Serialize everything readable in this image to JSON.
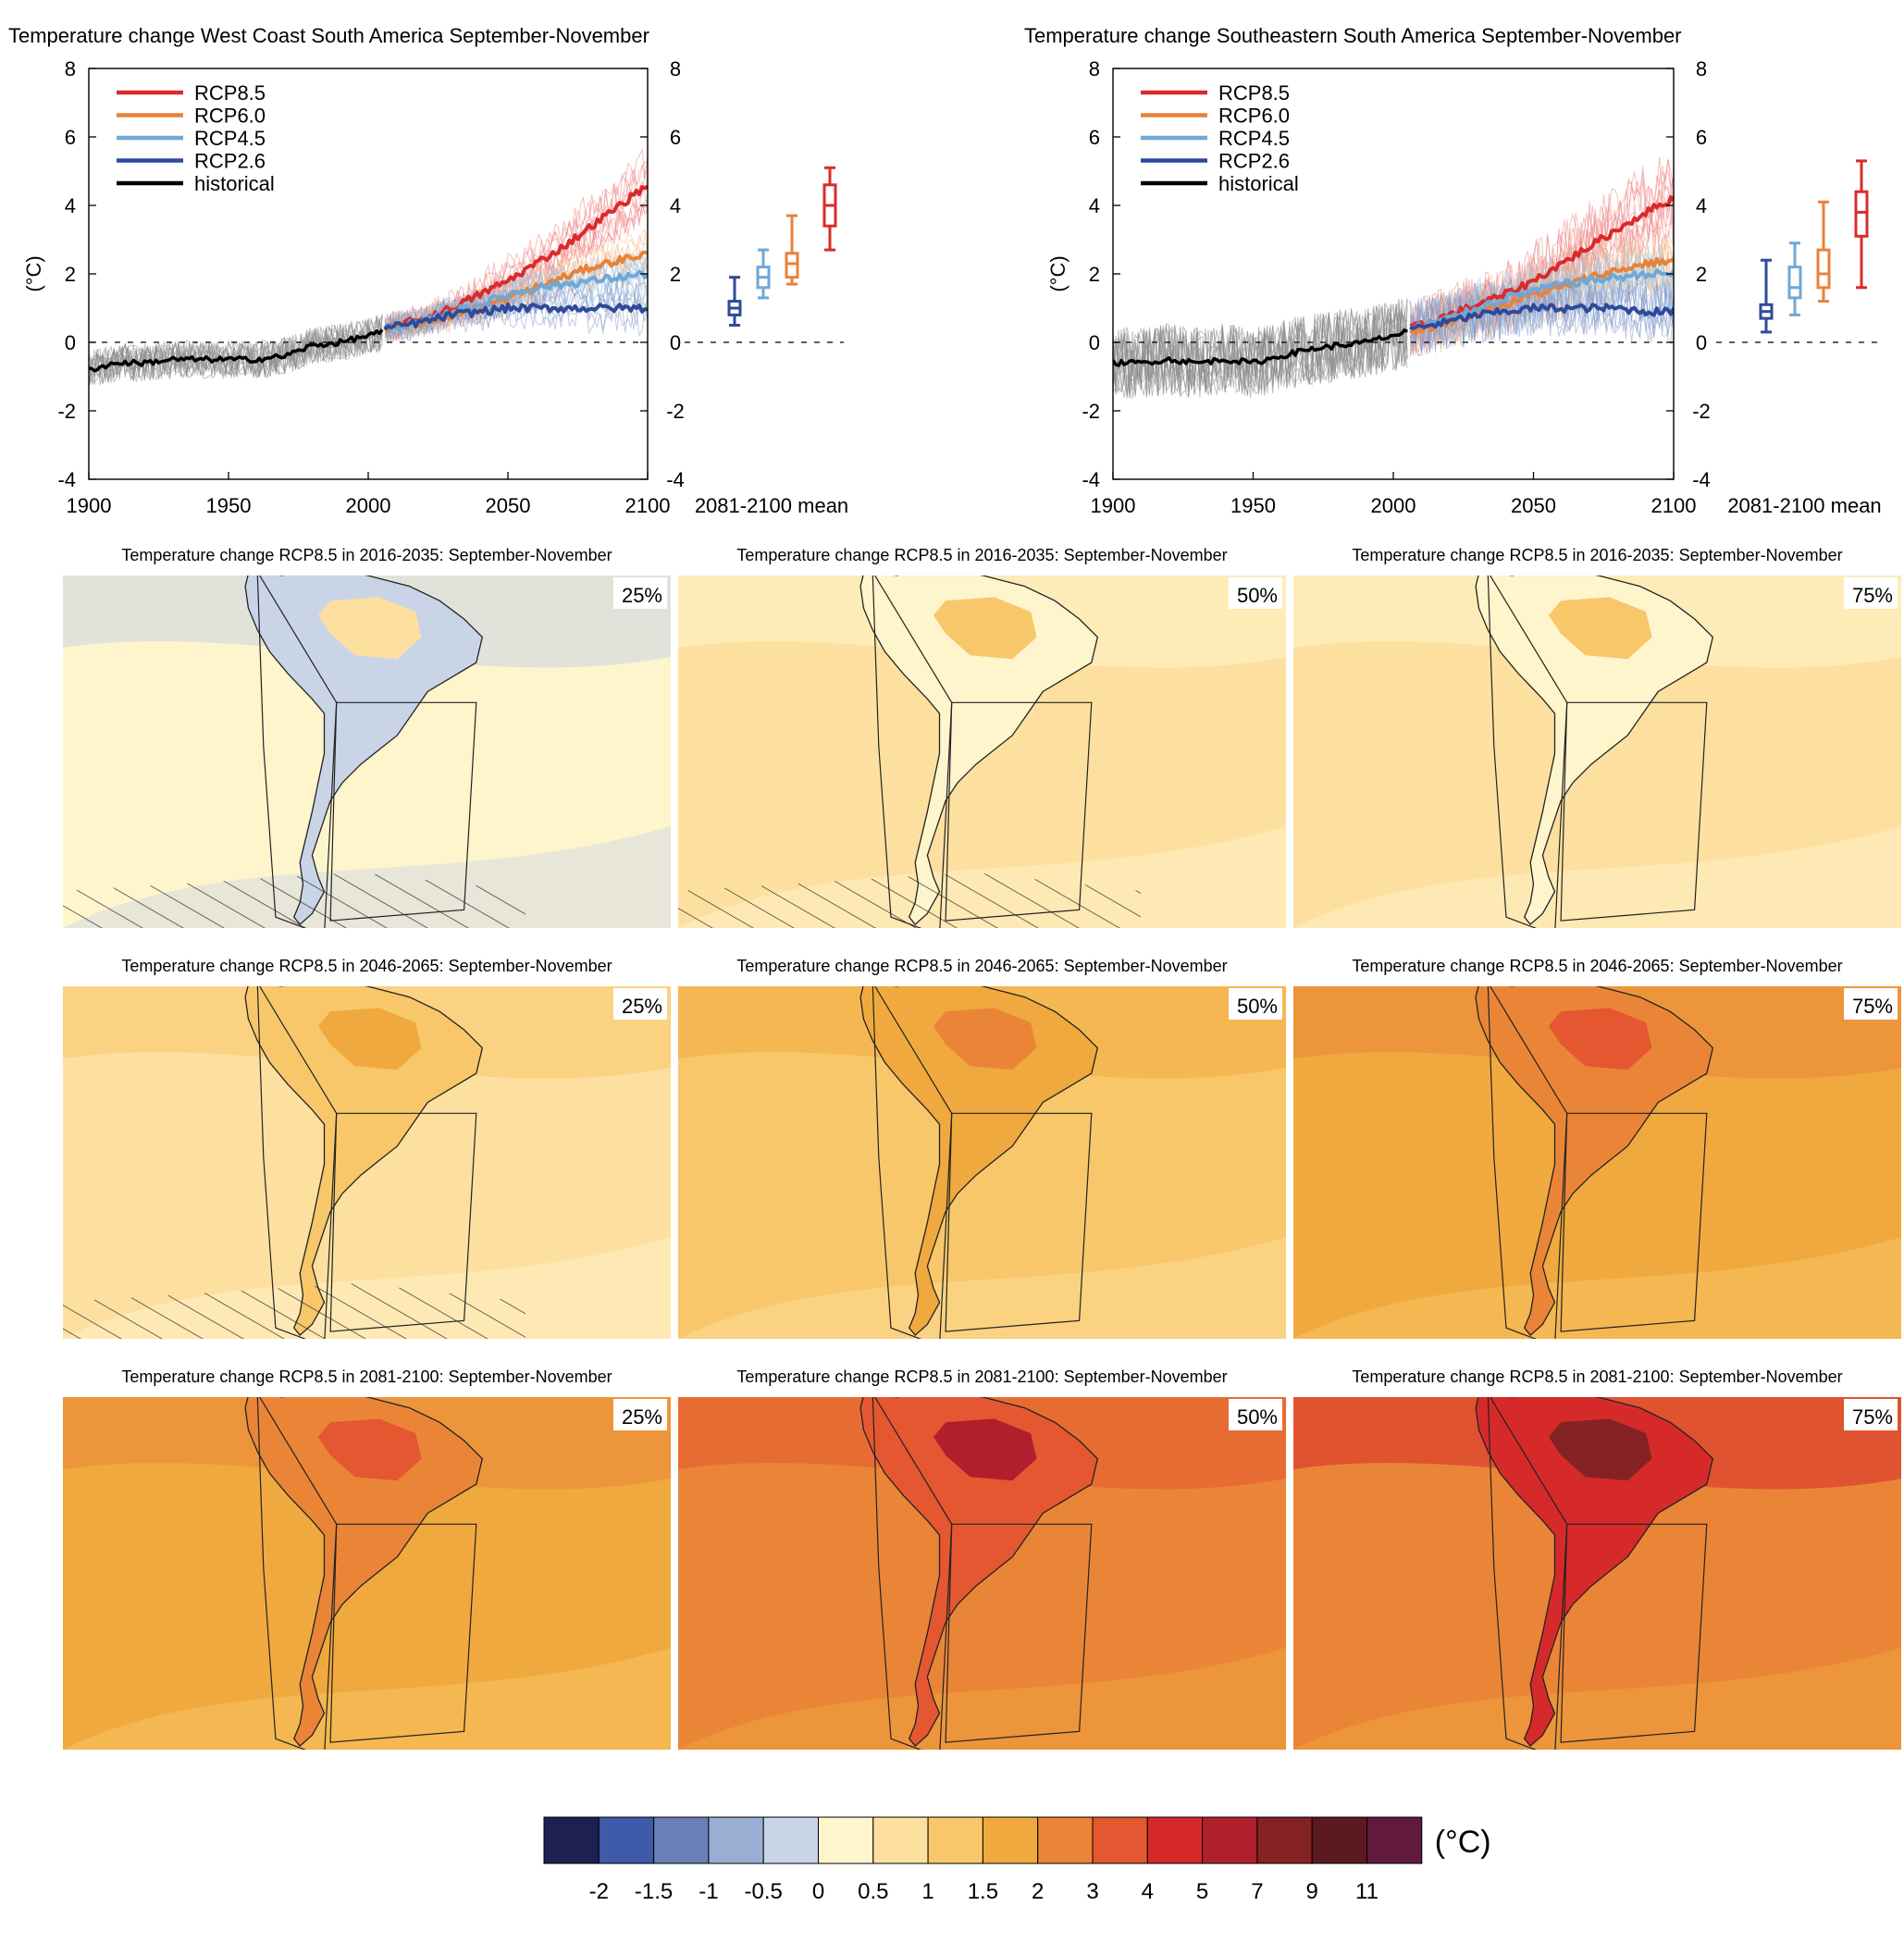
{
  "chart_data": [
    {
      "type": "line",
      "title": "Temperature change West Coast South America September-November",
      "ylabel": "(°C)",
      "xlim": [
        1900,
        2100
      ],
      "ylim": [
        -4,
        8
      ],
      "x_ticks": [
        "1900",
        "1950",
        "2000",
        "2050",
        "2100"
      ],
      "y_ticks": [
        "-4",
        "-2",
        "0",
        "2",
        "4",
        "6",
        "8"
      ],
      "legend_position": "top-left",
      "legend": [
        "RCP8.5",
        "RCP6.0",
        "RCP4.5",
        "RCP2.6",
        "historical"
      ],
      "boxplot_label": "2081-2100 mean",
      "series": [
        {
          "name": "historical",
          "color": "#000000",
          "x": [
            1900,
            1910,
            1920,
            1930,
            1940,
            1950,
            1960,
            1970,
            1980,
            1990,
            2000,
            2005
          ],
          "values": [
            -0.8,
            -0.6,
            -0.6,
            -0.5,
            -0.5,
            -0.5,
            -0.5,
            -0.4,
            -0.1,
            0.0,
            0.2,
            0.3
          ]
        },
        {
          "name": "RCP8.5",
          "color": "#d92b2b",
          "x": [
            2006,
            2020,
            2030,
            2040,
            2050,
            2060,
            2070,
            2080,
            2090,
            2100
          ],
          "values": [
            0.4,
            0.7,
            1.0,
            1.4,
            1.8,
            2.3,
            2.8,
            3.4,
            4.0,
            4.6
          ]
        },
        {
          "name": "RCP6.0",
          "color": "#e8823a",
          "x": [
            2006,
            2020,
            2030,
            2040,
            2050,
            2060,
            2070,
            2080,
            2090,
            2100
          ],
          "values": [
            0.4,
            0.6,
            0.8,
            1.0,
            1.3,
            1.6,
            1.9,
            2.2,
            2.4,
            2.6
          ]
        },
        {
          "name": "RCP4.5",
          "color": "#6fa8d6",
          "x": [
            2006,
            2020,
            2030,
            2040,
            2050,
            2060,
            2070,
            2080,
            2090,
            2100
          ],
          "values": [
            0.4,
            0.6,
            0.9,
            1.1,
            1.4,
            1.6,
            1.7,
            1.8,
            1.9,
            2.0
          ]
        },
        {
          "name": "RCP2.6",
          "color": "#2e4a9a",
          "x": [
            2006,
            2020,
            2030,
            2040,
            2050,
            2060,
            2070,
            2080,
            2090,
            2100
          ],
          "values": [
            0.4,
            0.6,
            0.8,
            0.9,
            1.0,
            1.0,
            1.0,
            1.0,
            1.0,
            1.0
          ]
        }
      ],
      "boxes": [
        {
          "name": "RCP2.6",
          "color": "#2e4a9a",
          "min": 0.5,
          "q1": 0.8,
          "median": 1.0,
          "q3": 1.2,
          "max": 1.9
        },
        {
          "name": "RCP4.5",
          "color": "#6fa8d6",
          "min": 1.3,
          "q1": 1.6,
          "median": 1.9,
          "q3": 2.2,
          "max": 2.7
        },
        {
          "name": "RCP6.0",
          "color": "#e8823a",
          "min": 1.7,
          "q1": 1.9,
          "median": 2.3,
          "q3": 2.6,
          "max": 3.7
        },
        {
          "name": "RCP8.5",
          "color": "#d92b2b",
          "min": 2.7,
          "q1": 3.4,
          "median": 4.0,
          "q3": 4.6,
          "max": 5.1
        }
      ]
    },
    {
      "type": "line",
      "title": "Temperature change Southeastern South America September-November",
      "ylabel": "(°C)",
      "xlim": [
        1900,
        2100
      ],
      "ylim": [
        -4,
        8
      ],
      "x_ticks": [
        "1900",
        "1950",
        "2000",
        "2050",
        "2100"
      ],
      "y_ticks": [
        "-4",
        "-2",
        "0",
        "2",
        "4",
        "6",
        "8"
      ],
      "legend_position": "top-left",
      "legend": [
        "RCP8.5",
        "RCP6.0",
        "RCP4.5",
        "RCP2.6",
        "historical"
      ],
      "boxplot_label": "2081-2100 mean",
      "series": [
        {
          "name": "historical",
          "color": "#000000",
          "x": [
            1900,
            1910,
            1920,
            1930,
            1940,
            1950,
            1960,
            1970,
            1980,
            1990,
            2000,
            2005
          ],
          "values": [
            -0.6,
            -0.6,
            -0.5,
            -0.6,
            -0.5,
            -0.6,
            -0.4,
            -0.2,
            -0.1,
            0.0,
            0.2,
            0.3
          ]
        },
        {
          "name": "RCP8.5",
          "color": "#d92b2b",
          "x": [
            2006,
            2020,
            2030,
            2040,
            2050,
            2060,
            2070,
            2080,
            2090,
            2100
          ],
          "values": [
            0.4,
            0.8,
            1.1,
            1.4,
            1.8,
            2.3,
            2.8,
            3.3,
            3.8,
            4.2
          ]
        },
        {
          "name": "RCP6.0",
          "color": "#e8823a",
          "x": [
            2006,
            2020,
            2030,
            2040,
            2050,
            2060,
            2070,
            2080,
            2090,
            2100
          ],
          "values": [
            0.3,
            0.6,
            0.9,
            1.1,
            1.4,
            1.6,
            1.9,
            2.1,
            2.3,
            2.4
          ]
        },
        {
          "name": "RCP4.5",
          "color": "#6fa8d6",
          "x": [
            2006,
            2020,
            2030,
            2040,
            2050,
            2060,
            2070,
            2080,
            2090,
            2100
          ],
          "values": [
            0.4,
            0.7,
            1.0,
            1.3,
            1.5,
            1.7,
            1.8,
            1.9,
            2.0,
            2.0
          ]
        },
        {
          "name": "RCP2.6",
          "color": "#2e4a9a",
          "x": [
            2006,
            2020,
            2030,
            2040,
            2050,
            2060,
            2070,
            2080,
            2090,
            2100
          ],
          "values": [
            0.4,
            0.6,
            0.8,
            0.9,
            1.0,
            1.0,
            1.0,
            1.0,
            0.9,
            0.9
          ]
        }
      ],
      "boxes": [
        {
          "name": "RCP2.6",
          "color": "#2e4a9a",
          "min": 0.3,
          "q1": 0.7,
          "median": 0.9,
          "q3": 1.1,
          "max": 2.4
        },
        {
          "name": "RCP4.5",
          "color": "#6fa8d6",
          "min": 0.8,
          "q1": 1.3,
          "median": 1.6,
          "q3": 2.2,
          "max": 2.9
        },
        {
          "name": "RCP6.0",
          "color": "#e8823a",
          "min": 1.2,
          "q1": 1.6,
          "median": 2.0,
          "q3": 2.7,
          "max": 4.1
        },
        {
          "name": "RCP8.5",
          "color": "#d92b2b",
          "min": 1.6,
          "q1": 3.1,
          "median": 3.8,
          "q3": 4.4,
          "max": 5.3
        }
      ]
    },
    {
      "type": "heatmap",
      "panels": [
        {
          "title": "Temperature change RCP8.5 in 2016-2035: September-November",
          "percentile": "25%",
          "base": 5,
          "regions": [
            4,
            6
          ],
          "hatched": true
        },
        {
          "title": "Temperature change RCP8.5 in 2016-2035: September-November",
          "percentile": "50%",
          "base": 6,
          "regions": [
            5,
            7
          ],
          "hatched": true
        },
        {
          "title": "Temperature change RCP8.5 in 2016-2035: September-November",
          "percentile": "75%",
          "base": 6,
          "regions": [
            5,
            7
          ],
          "hatched": false
        },
        {
          "title": "Temperature change RCP8.5 in 2046-2065: September-November",
          "percentile": "25%",
          "base": 6,
          "regions": [
            7,
            8
          ],
          "hatched": true
        },
        {
          "title": "Temperature change RCP8.5 in 2046-2065: September-November",
          "percentile": "50%",
          "base": 7,
          "regions": [
            8,
            9
          ],
          "hatched": false
        },
        {
          "title": "Temperature change RCP8.5 in 2046-2065: September-November",
          "percentile": "75%",
          "base": 8,
          "regions": [
            9,
            10
          ],
          "hatched": false
        },
        {
          "title": "Temperature change RCP8.5 in 2081-2100: September-November",
          "percentile": "25%",
          "base": 8,
          "regions": [
            9,
            10
          ],
          "hatched": false
        },
        {
          "title": "Temperature change RCP8.5 in 2081-2100: September-November",
          "percentile": "50%",
          "base": 9,
          "regions": [
            10,
            12
          ],
          "hatched": false
        },
        {
          "title": "Temperature change RCP8.5 in 2081-2100: September-November",
          "percentile": "75%",
          "base": 9,
          "regions": [
            11,
            13
          ],
          "hatched": false
        }
      ]
    }
  ],
  "colorbar": {
    "unit": "(°C)",
    "colors": [
      "#1c2150",
      "#3e5aa8",
      "#6a7fb5",
      "#9aadd2",
      "#c9d4e6",
      "#fff5cc",
      "#fde0a0",
      "#f8c76a",
      "#f0a93e",
      "#ea8538",
      "#e45731",
      "#d62a2a",
      "#b0202c",
      "#852224",
      "#5b1a1e",
      "#62193e"
    ],
    "labels": [
      "-2",
      "-1.5",
      "-1",
      "-0.5",
      "0",
      "0.5",
      "1",
      "1.5",
      "2",
      "3",
      "4",
      "5",
      "7",
      "9",
      "11"
    ]
  }
}
